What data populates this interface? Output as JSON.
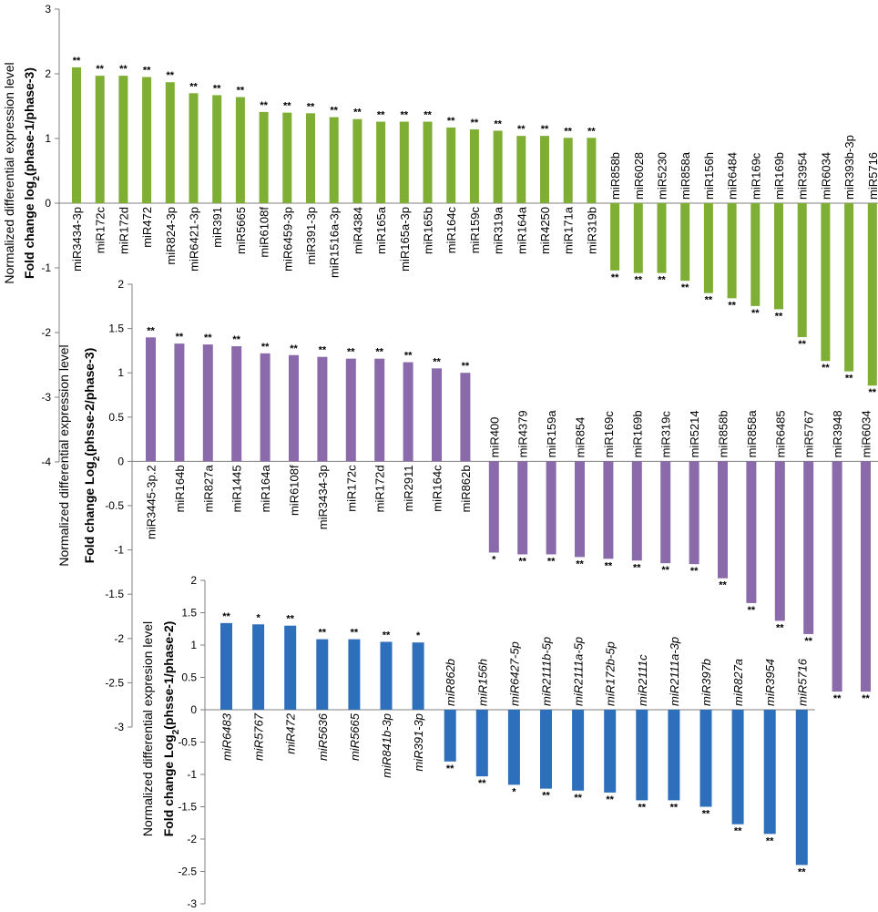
{
  "chart_data": [
    {
      "type": "bar",
      "name": "phase1-vs-phase3",
      "color": "#7fae35",
      "ylabel_line1": "Normalized differential expression level",
      "ylabel_line2_pre": "Fold change log",
      "ylabel_line2_sub": "2",
      "ylabel_line2_post": "(phase-1/phase-3)",
      "ylim": [
        -4,
        3
      ],
      "yticks": [
        3,
        2,
        1,
        0,
        -1,
        -2,
        -3,
        -4
      ],
      "italic_labels": false,
      "categories": [
        "miR3434-3p",
        "miR172c",
        "miR172d",
        "miR472",
        "miR824-3p",
        "miR6421-3p",
        "miR391",
        "miR5665",
        "miR6108f",
        "miR6459-3p",
        "miR391-3p",
        "miR1516a-3p",
        "miR4384",
        "miR165a",
        "miR165a-3p",
        "miR165b",
        "miR164c",
        "miR159c",
        "miR319a",
        "miR164a",
        "miR4250",
        "miR171a",
        "miR319b",
        "miR858b",
        "miR6028",
        "miR5230",
        "miR858a",
        "miR156h",
        "miR6484",
        "miR169c",
        "miR169b",
        "miR3954",
        "miR6034",
        "miR393b-3p",
        "miR5716"
      ],
      "values": [
        2.1,
        1.97,
        1.97,
        1.95,
        1.87,
        1.7,
        1.67,
        1.64,
        1.41,
        1.4,
        1.39,
        1.33,
        1.3,
        1.26,
        1.26,
        1.26,
        1.17,
        1.14,
        1.12,
        1.04,
        1.04,
        1.01,
        1.01,
        -1.04,
        -1.08,
        -1.08,
        -1.2,
        -1.39,
        -1.47,
        -1.59,
        -1.64,
        -2.07,
        -2.44,
        -2.6,
        -2.82
      ],
      "significance": [
        "**",
        "**",
        "**",
        "**",
        "**",
        "**",
        "**",
        "**",
        "**",
        "**",
        "**",
        "**",
        "**",
        "**",
        "**",
        "**",
        "**",
        "**",
        "**",
        "**",
        "**",
        "**",
        "**",
        "**",
        "**",
        "**",
        "**",
        "**",
        "**",
        "**",
        "**",
        "**",
        "**",
        "**",
        "**"
      ]
    },
    {
      "type": "bar",
      "name": "phase2-vs-phase3",
      "color": "#8a6aaa",
      "ylabel_line1": "Normalized differential expression level",
      "ylabel_line2_pre": "Fold change Log",
      "ylabel_line2_sub": "2",
      "ylabel_line2_post": "(phsse-2/phase-3)",
      "ylim": [
        -3,
        2
      ],
      "yticks": [
        2,
        1.5,
        1,
        0.5,
        0,
        -0.5,
        -1,
        -1.5,
        -2,
        -2.5,
        -3
      ],
      "italic_labels": false,
      "categories": [
        "miR3445-3p.2",
        "miR164b",
        "miR827a",
        "miR1445",
        "miR164a",
        "miR6108f",
        "miR3434-3p",
        "miR172c",
        "miR172d",
        "miR2911",
        "miR164c",
        "miR862b",
        "miR400",
        "miR4379",
        "miR159a",
        "miR854",
        "miR169c",
        "miR169b",
        "miR319c",
        "miR5214",
        "miR858b",
        "miR858a",
        "miR6485",
        "miR5767",
        "miR3948",
        "miR6034"
      ],
      "values": [
        1.4,
        1.33,
        1.32,
        1.3,
        1.22,
        1.2,
        1.18,
        1.16,
        1.16,
        1.12,
        1.05,
        1.0,
        -1.03,
        -1.05,
        -1.05,
        -1.08,
        -1.1,
        -1.12,
        -1.15,
        -1.16,
        -1.32,
        -1.6,
        -1.8,
        -1.95,
        -2.6,
        -2.6
      ],
      "significance": [
        "**",
        "**",
        "**",
        "**",
        "**",
        "**",
        "**",
        "**",
        "**",
        "**",
        "**",
        "**",
        "*",
        "**",
        "**",
        "**",
        "**",
        "**",
        "**",
        "**",
        "**",
        "**",
        "**",
        "**",
        "**",
        "**"
      ]
    },
    {
      "type": "bar",
      "name": "phase1-vs-phase2",
      "color": "#2e6fbc",
      "ylabel_line1": "Normalized differential expresion level",
      "ylabel_line2_pre": "Fold change Log",
      "ylabel_line2_sub": "2",
      "ylabel_line2_post": "(phsse-1/phase-2)",
      "ylim": [
        -3,
        2
      ],
      "yticks": [
        2,
        1.5,
        1,
        0.5,
        0,
        -0.5,
        -1,
        -1.5,
        -2,
        -2.5,
        -3
      ],
      "italic_labels": true,
      "categories": [
        "miR6483",
        "miR5767",
        "miR472",
        "miR5636",
        "miR5665",
        "miR841b-3p",
        "miR391-3p",
        "miR862b",
        "miR156h",
        "miR6427-5p",
        "miR2111b-5p",
        "miR2111a-5p",
        "miR172b-5p",
        "miR2111c",
        "miR2111a-3p",
        "miR397b",
        "miR827a",
        "miR3954",
        "miR5716"
      ],
      "values": [
        1.34,
        1.32,
        1.3,
        1.09,
        1.09,
        1.05,
        1.04,
        -0.8,
        -1.03,
        -1.16,
        -1.22,
        -1.25,
        -1.28,
        -1.4,
        -1.4,
        -1.5,
        -1.77,
        -1.92,
        -2.4
      ],
      "significance": [
        "**",
        "*",
        "**",
        "**",
        "**",
        "**",
        "*",
        "**",
        "**",
        "*",
        "**",
        "**",
        "**",
        "**",
        "**",
        "**",
        "**",
        "**",
        "**"
      ]
    }
  ]
}
